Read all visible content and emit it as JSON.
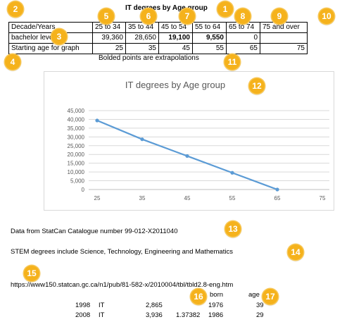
{
  "sheet": {
    "title": "IT degrees by Age group",
    "table": {
      "headers": [
        "Decade/Years",
        "25 to 34",
        "35 to 44",
        "45 to 54",
        "55 to 64",
        "65 to 74",
        "75 and over"
      ],
      "rows": [
        {
          "label": "bachelor level",
          "values": [
            "39,360",
            "28,650",
            "19,100",
            "9,550",
            "0",
            ""
          ],
          "bold": [
            false,
            false,
            true,
            true,
            false,
            false
          ]
        },
        {
          "label": "Starting age for graph",
          "values": [
            "25",
            "35",
            "45",
            "55",
            "65",
            "75"
          ],
          "bold": [
            false,
            false,
            false,
            false,
            false,
            false
          ]
        }
      ]
    },
    "note": "Bolded points are extrapolations",
    "source": "Data from StatCan Catalogue number 99-012-X2011040",
    "stem_note": "STEM degrees include Science, Technology, Engineering and Mathematics",
    "url": "https://www150.statcan.gc.ca/n1/pub/81-582-x/2010004/tbl/tbld2.8-eng.htm",
    "extra_headers": {
      "born": "born",
      "age": "age"
    },
    "extra_rows": [
      {
        "year": "1998",
        "field": "IT",
        "value": "2,865",
        "ratio": "",
        "born": "1976",
        "age": "39"
      },
      {
        "year": "2008",
        "field": "IT",
        "value": "3,936",
        "ratio": "1.37382",
        "born": "1986",
        "age": "29"
      }
    ]
  },
  "badges": [
    "1",
    "2",
    "3",
    "4",
    "5",
    "6",
    "7",
    "8",
    "9",
    "10",
    "11",
    "12",
    "13",
    "14",
    "15",
    "16",
    "17"
  ],
  "chart_data": {
    "type": "line",
    "title": "IT degrees by Age group",
    "x": [
      25,
      35,
      45,
      55,
      65,
      75
    ],
    "series": [
      {
        "values": [
          39360,
          28650,
          19100,
          9550,
          0,
          null
        ]
      }
    ],
    "x_tick_labels": [
      "25",
      "35",
      "45",
      "55",
      "65",
      "75"
    ],
    "y_tick_labels": [
      "0",
      "5,000",
      "10,000",
      "15,000",
      "20,000",
      "25,000",
      "30,000",
      "35,000",
      "40,000",
      "45,000"
    ],
    "ylim": [
      0,
      45000
    ],
    "grid": true,
    "line_color": "#5b9bd5"
  }
}
